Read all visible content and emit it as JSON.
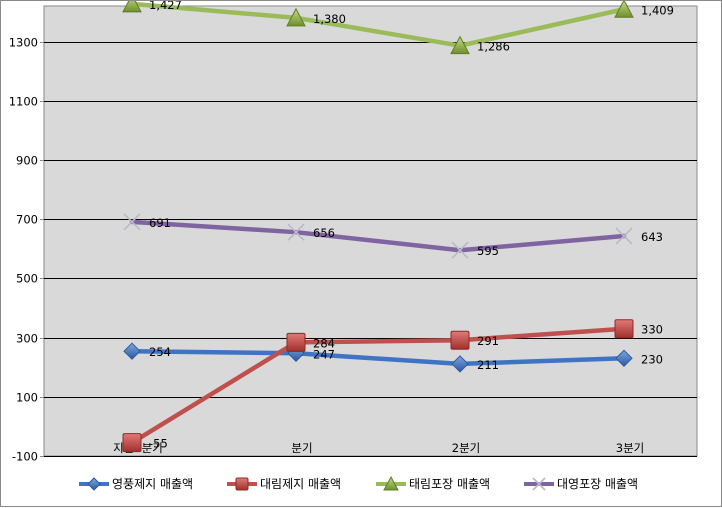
{
  "chart_data": {
    "type": "line",
    "title": "",
    "xlabel": "",
    "ylabel": "",
    "categories": [
      "지난4분기",
      "분기",
      "2분기",
      "3분기"
    ],
    "ylim": [
      -100,
      1400
    ],
    "yticks": [
      -100,
      100,
      300,
      500,
      700,
      900,
      1100,
      1300
    ],
    "ytick_labels": [
      "-100",
      "100",
      "300",
      "500",
      "700",
      "900",
      "1100",
      "1300"
    ],
    "grid": true,
    "legend_position": "bottom",
    "series": [
      {
        "name": "영풍제지 매출액",
        "values": [
          254,
          247,
          211,
          230
        ],
        "labels": [
          "254",
          "247",
          "211",
          "230"
        ],
        "color": "#3f74c4",
        "marker": "diamond"
      },
      {
        "name": "대림제지 매출액",
        "values": [
          -55,
          284,
          291,
          330
        ],
        "labels": [
          "-55",
          "284",
          "291",
          "330"
        ],
        "color": "#c0504d",
        "marker": "square"
      },
      {
        "name": "태림포장 매출액",
        "values": [
          1427,
          1380,
          1286,
          1409
        ],
        "labels": [
          "1,427",
          "1,380",
          "1,286",
          "1,409"
        ],
        "color": "#9bbb59",
        "marker": "triangle"
      },
      {
        "name": "대영포장 매출액",
        "values": [
          691,
          656,
          595,
          643
        ],
        "labels": [
          "691",
          "656",
          "595",
          "643"
        ],
        "color": "#8064a2",
        "marker": "x"
      }
    ]
  }
}
